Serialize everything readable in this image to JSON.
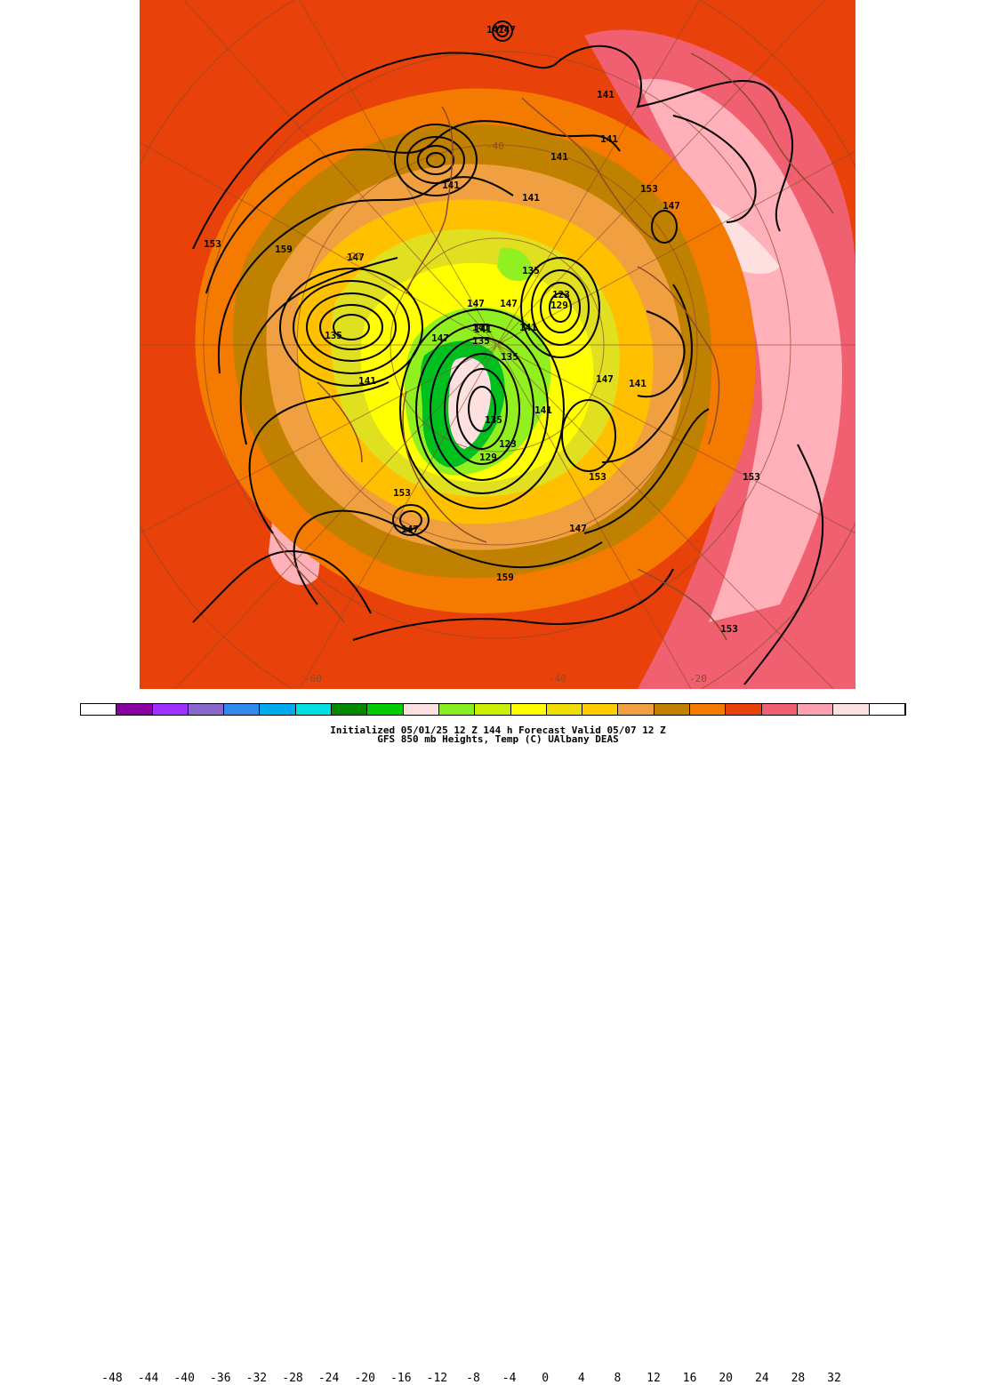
{
  "map": {
    "projection": "north polar stereographic",
    "variable": "850 mb heights (dam) and temperature (C)",
    "height_contour_labels": [
      "147",
      "147",
      "141",
      "141",
      "141",
      "141",
      "141",
      "153",
      "153",
      "147",
      "159",
      "147",
      "135",
      "141",
      "147",
      "147",
      "147",
      "141",
      "135",
      "135",
      "141",
      "123",
      "129",
      "135",
      "147",
      "141",
      "141",
      "153",
      "147",
      "159",
      "147",
      "153",
      "153",
      "153",
      "129",
      "123",
      "135",
      "141"
    ],
    "latitude_labels": [
      "-40",
      "-20",
      "-40",
      "-60",
      "-20"
    ],
    "colors": {
      "background_warm": "#e8420a",
      "ocean_orange": "#f57a00",
      "brown": "#c08000",
      "tan": "#f0a040",
      "gold": "#ffc000",
      "yellow_green": "#e0e020",
      "yellow": "#ffff00",
      "light_green": "#90f020",
      "green": "#00c020",
      "pink": "#f06060",
      "light_pink": "#ffb0b8",
      "white": "#ffffff",
      "contour": "#000000",
      "coastline": "#8b4a2a"
    }
  },
  "colorbar": {
    "ticks": [
      "-48",
      "-44",
      "-40",
      "-36",
      "-32",
      "-28",
      "-24",
      "-20",
      "-16",
      "-12",
      "-8",
      "-4",
      "0",
      "4",
      "8",
      "12",
      "16",
      "20",
      "24",
      "28",
      "32"
    ],
    "colors": [
      "#ffffff",
      "#8800a0",
      "#a030ff",
      "#8866cc",
      "#3388ee",
      "#00aaee",
      "#00e0e0",
      "#008800",
      "#00cc00",
      "#ffe0e0",
      "#88ee22",
      "#ccee00",
      "#ffff00",
      "#eedd00",
      "#ffcc00",
      "#f0a040",
      "#c08000",
      "#f57a00",
      "#e8420a",
      "#f06070",
      "#ffa0b0",
      "#ffe0e0",
      "#ffffff"
    ]
  },
  "footer": {
    "line1": "Initialized 05/01/25 12 Z  144 h Forecast Valid 05/07 12 Z",
    "line2": "GFS 850 mb  Heights, Temp (C)     UAlbany DEAS"
  }
}
